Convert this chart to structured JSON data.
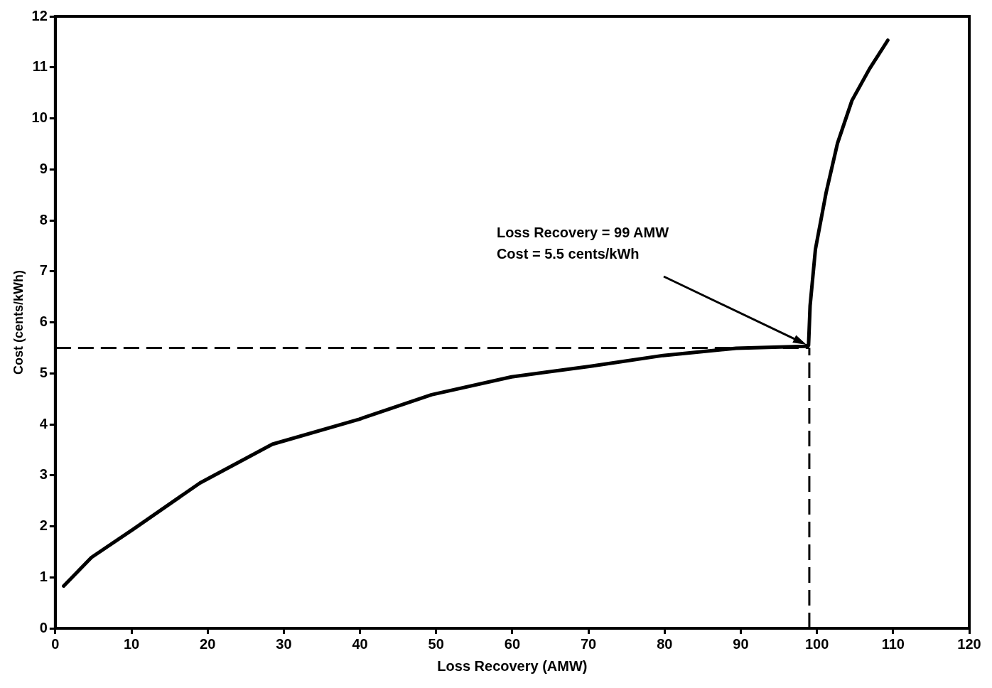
{
  "chart_data": {
    "type": "line",
    "xlabel": "Loss Recovery (AMW)",
    "ylabel": "Cost (cents/kWh)",
    "x": [
      1.1,
      4.75,
      10.2,
      19,
      28.5,
      39.9,
      49.4,
      59.9,
      70.3,
      79.8,
      89.4,
      98.4,
      98.9,
      99.1,
      99.8,
      101.2,
      102.7,
      104.6,
      106.9,
      109.3
    ],
    "series": [
      {
        "color": "#000000",
        "values": [
          0.83,
          1.39,
          1.94,
          2.85,
          3.61,
          4.1,
          4.58,
          4.93,
          5.14,
          5.35,
          5.49,
          5.53,
          5.55,
          6.32,
          7.43,
          8.54,
          9.51,
          10.35,
          10.97,
          11.53
        ]
      }
    ],
    "xlim": [
      0,
      120
    ],
    "ylim": [
      0,
      12
    ],
    "xticks": [
      0,
      10,
      20,
      30,
      40,
      50,
      60,
      70,
      80,
      90,
      100,
      110,
      120
    ],
    "yticks": [
      0,
      1,
      2,
      3,
      4,
      5,
      6,
      7,
      8,
      9,
      10,
      11,
      12
    ],
    "ref_lines": [
      {
        "axis": "y",
        "value": 5.5,
        "line_style": "dashed",
        "color": "#000000"
      },
      {
        "axis": "x",
        "value": 99,
        "line_style": "dashed",
        "color": "#000000"
      }
    ],
    "annotations": [
      "Loss Recovery = 99 AMW\nCost = 5.5 cents/kWh"
    ],
    "grid": false,
    "legend": false,
    "marker": "none",
    "line_style": "solid"
  }
}
